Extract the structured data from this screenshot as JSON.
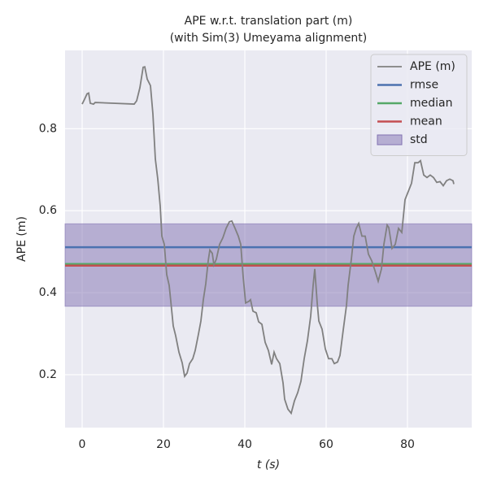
{
  "chart_data": {
    "type": "line",
    "title": "APE w.r.t. translation part (m)",
    "subtitle": "(with Sim(3) Umeyama alignment)",
    "xlabel": "t (s)",
    "ylabel": "APE (m)",
    "xlim": [
      -4.2,
      95.8
    ],
    "ylim": [
      0.071,
      0.991
    ],
    "xticks": [
      0,
      20,
      40,
      60,
      80
    ],
    "yticks": [
      0.2,
      0.4,
      0.6,
      0.8
    ],
    "grid": true,
    "legend": "upper right",
    "series": [
      {
        "name": "APE (m)",
        "color": "#808080",
        "x": [
          0,
          0.6,
          1.2,
          1.6,
          2,
          2.8,
          3.2,
          12.8,
          13.4,
          14.2,
          15,
          15.4,
          16,
          16.8,
          17.4,
          18,
          18.6,
          19.2,
          19.6,
          20.2,
          20.8,
          21.4,
          21.8,
          22.4,
          23,
          23.8,
          24.6,
          25.2,
          25.8,
          26.4,
          27.2,
          27.8,
          28.6,
          29.2,
          29.8,
          30.4,
          31,
          31.4,
          32,
          32.4,
          33,
          33.8,
          34.6,
          35.4,
          36.2,
          36.8,
          37.6,
          38.4,
          39,
          39.6,
          40.2,
          41,
          41.4,
          42,
          42.8,
          43.4,
          44.2,
          45,
          45.8,
          46.6,
          47.2,
          47.8,
          48.6,
          49.4,
          49.8,
          50.6,
          51.4,
          52.2,
          53,
          53.8,
          54.6,
          55.4,
          56.2,
          56.8,
          57.2,
          57.8,
          58.2,
          59,
          59.8,
          60.6,
          61.4,
          62,
          62.8,
          63.4,
          64.2,
          65,
          65.4,
          66.2,
          66.8,
          67.4,
          68,
          68.8,
          69.6,
          70.4,
          71.2,
          72,
          72.8,
          73.6,
          74.2,
          75,
          75.4,
          76.2,
          77,
          77.8,
          78.6,
          79.4,
          80.2,
          81,
          81.8,
          82.6,
          83.2,
          84,
          84.8,
          85.6,
          86.4,
          87.2,
          88,
          88.8,
          89.6,
          90.4,
          91.2,
          91.4
        ],
        "values": [
          0.86,
          0.872,
          0.885,
          0.887,
          0.862,
          0.86,
          0.864,
          0.86,
          0.868,
          0.9,
          0.95,
          0.951,
          0.921,
          0.905,
          0.836,
          0.726,
          0.677,
          0.611,
          0.538,
          0.518,
          0.444,
          0.418,
          0.379,
          0.319,
          0.295,
          0.255,
          0.229,
          0.196,
          0.204,
          0.227,
          0.239,
          0.259,
          0.299,
          0.331,
          0.383,
          0.422,
          0.478,
          0.504,
          0.496,
          0.468,
          0.482,
          0.518,
          0.534,
          0.557,
          0.573,
          0.575,
          0.557,
          0.538,
          0.518,
          0.438,
          0.375,
          0.379,
          0.383,
          0.355,
          0.351,
          0.329,
          0.323,
          0.279,
          0.259,
          0.225,
          0.255,
          0.239,
          0.227,
          0.18,
          0.14,
          0.116,
          0.106,
          0.136,
          0.156,
          0.184,
          0.239,
          0.283,
          0.343,
          0.418,
          0.458,
          0.375,
          0.331,
          0.311,
          0.263,
          0.239,
          0.239,
          0.227,
          0.231,
          0.247,
          0.309,
          0.369,
          0.418,
          0.482,
          0.538,
          0.557,
          0.569,
          0.538,
          0.538,
          0.494,
          0.478,
          0.454,
          0.428,
          0.458,
          0.518,
          0.565,
          0.559,
          0.508,
          0.518,
          0.557,
          0.547,
          0.627,
          0.647,
          0.667,
          0.717,
          0.717,
          0.722,
          0.687,
          0.681,
          0.687,
          0.681,
          0.669,
          0.671,
          0.661,
          0.673,
          0.677,
          0.673,
          0.665
        ]
      }
    ],
    "hlines": [
      {
        "name": "rmse",
        "value": 0.511,
        "color": "#4c72b0"
      },
      {
        "name": "median",
        "value": 0.47,
        "color": "#55a868"
      },
      {
        "name": "mean",
        "value": 0.466,
        "color": "#c44e52"
      }
    ],
    "band": {
      "name": "std",
      "values": [
        0.367,
        0.568
      ],
      "color": "#8172b2"
    }
  }
}
